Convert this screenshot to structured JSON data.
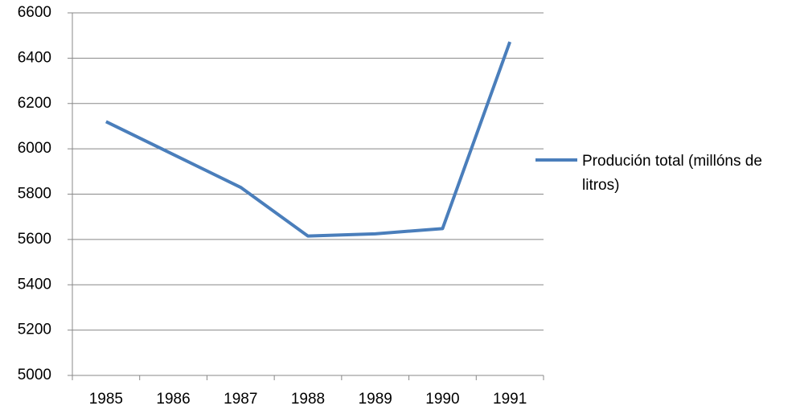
{
  "chart_data": {
    "type": "line",
    "categories": [
      "1985",
      "1986",
      "1987",
      "1988",
      "1989",
      "1990",
      "1991"
    ],
    "series": [
      {
        "name": "Produción total (millóns de litros)",
        "color": "#4a7ebb",
        "values": [
          6120,
          5975,
          5830,
          5615,
          5625,
          5648,
          6472
        ]
      }
    ],
    "ylim": [
      5000,
      6600
    ],
    "yticks": [
      5000,
      5200,
      5400,
      5600,
      5800,
      6000,
      6200,
      6400,
      6600
    ],
    "grid": true,
    "legend": "right"
  }
}
